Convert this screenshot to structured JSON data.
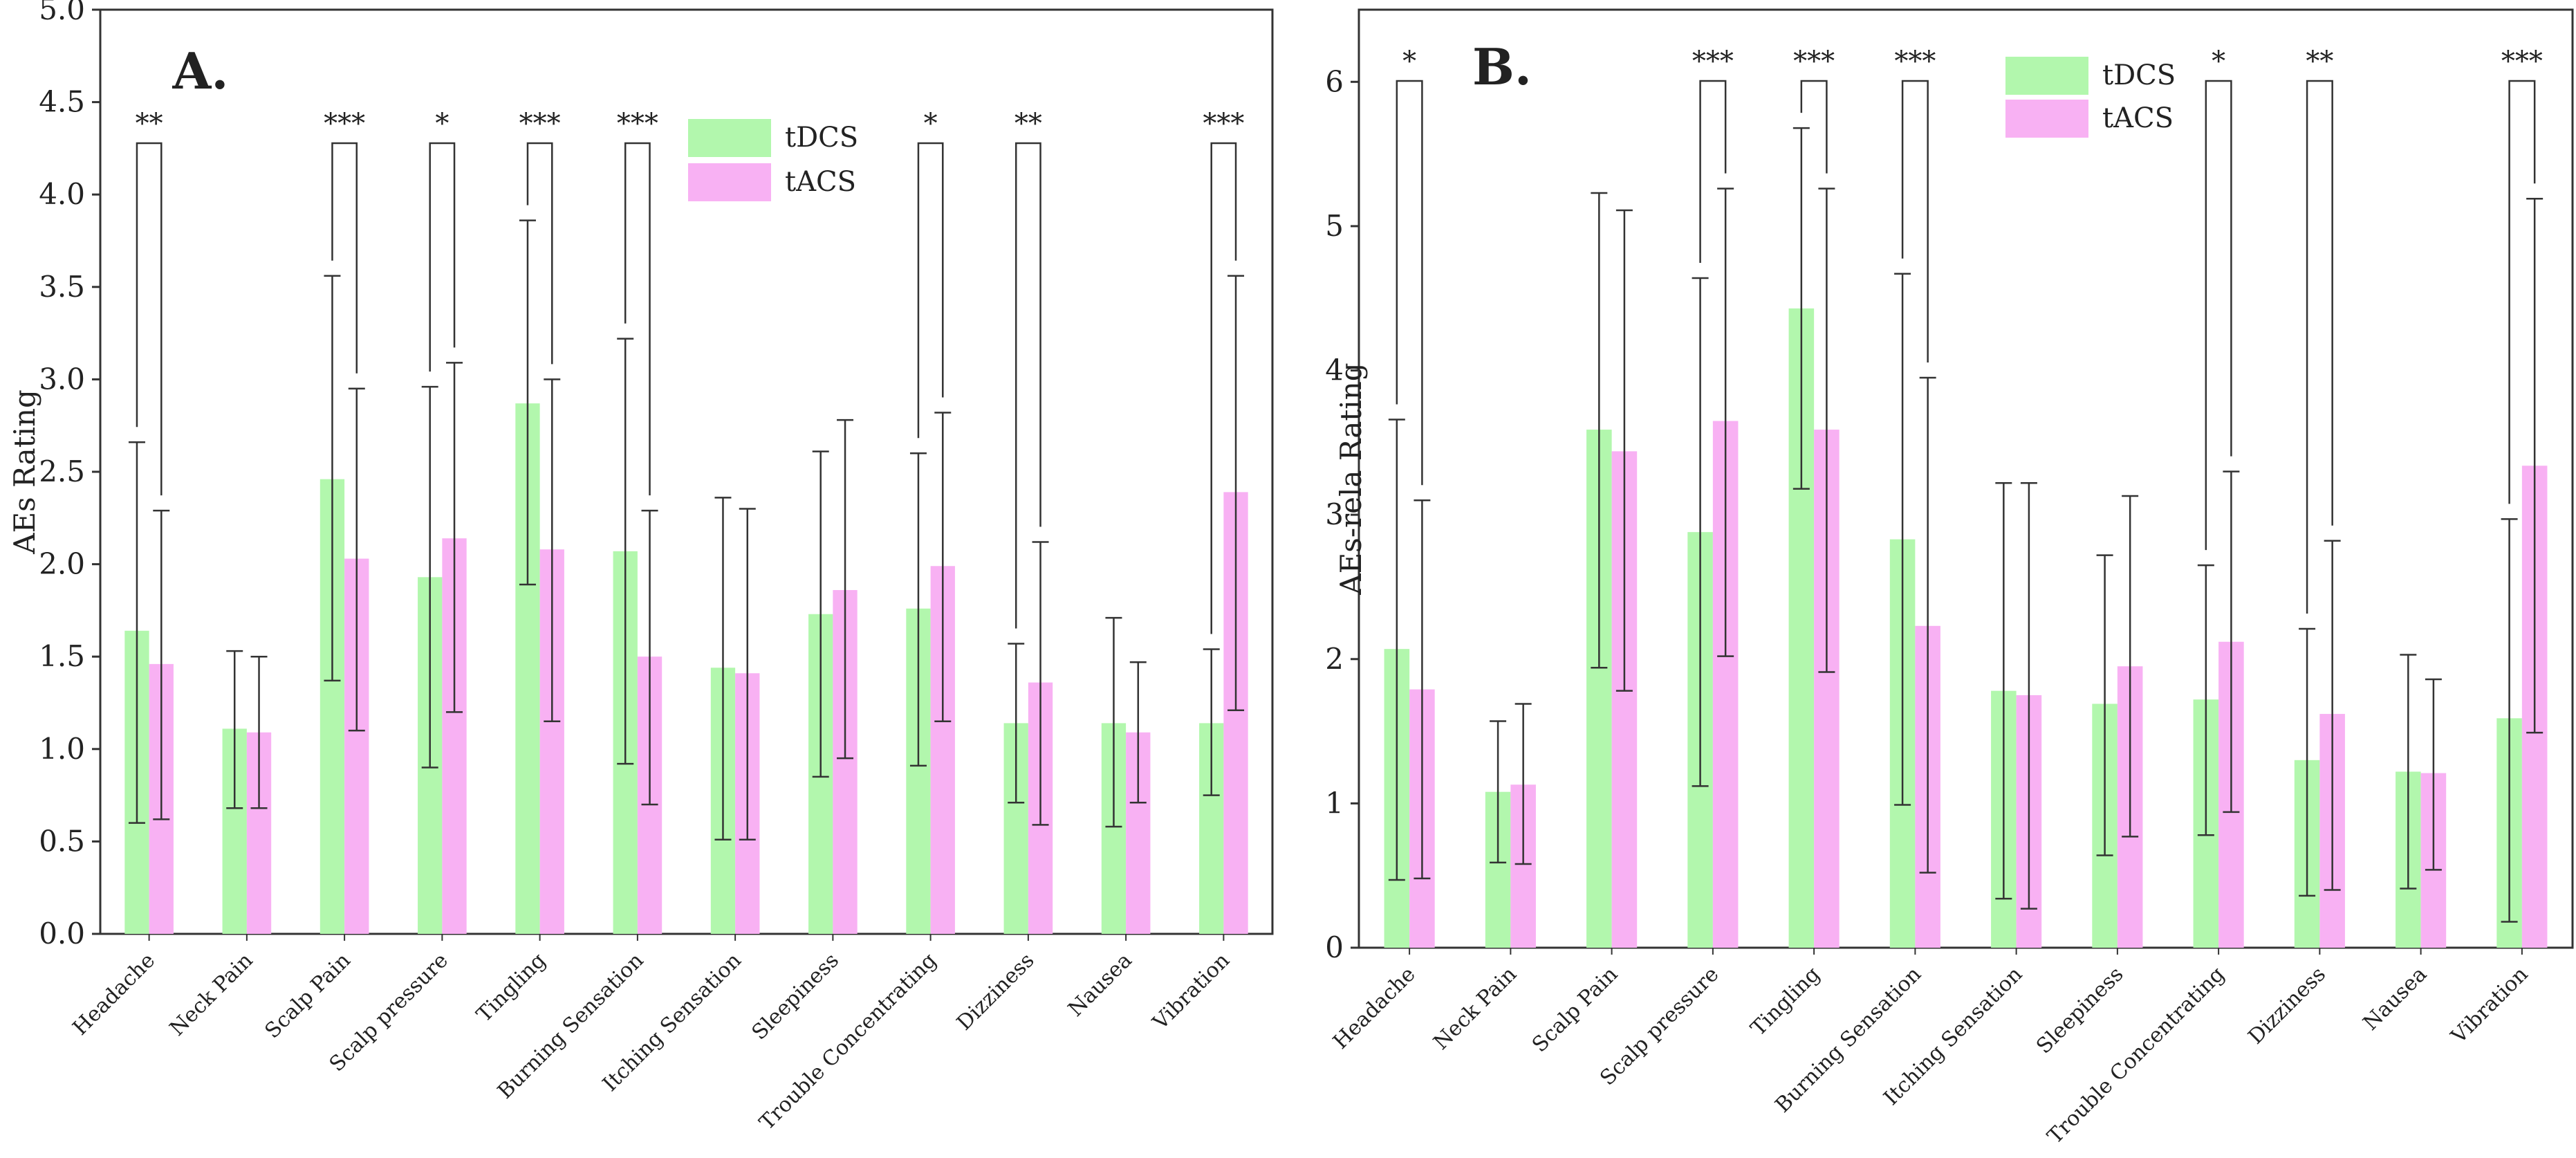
{
  "figure": {
    "colors": {
      "tdcs": "#b2f7ad",
      "tacs": "#f8b1f3",
      "axis": "#333333",
      "text": "#222222"
    }
  },
  "chart_data": [
    {
      "type": "bar",
      "panel_label": "A.",
      "title": "",
      "xlabel": "",
      "ylabel": "AEs Rating",
      "ylim": [
        0,
        5
      ],
      "yticks": [
        "0.0",
        "0.5",
        "1.0",
        "1.5",
        "2.0",
        "2.5",
        "3.0",
        "3.5",
        "4.0",
        "4.5",
        "5.0"
      ],
      "legend_position": "top-right",
      "categories": [
        "Headache",
        "Neck Pain",
        "Scalp Pain",
        "Scalp pressure",
        "Tingling",
        "Burning Sensation",
        "Itching Sensation",
        "Sleepiness",
        "Trouble Concentrating",
        "Dizziness",
        "Nausea",
        "Vibration"
      ],
      "series": [
        {
          "name": "tDCS",
          "values": [
            1.64,
            1.11,
            2.46,
            1.93,
            2.87,
            2.07,
            1.44,
            1.73,
            1.76,
            1.14,
            1.14,
            1.14
          ],
          "err_low": [
            0.6,
            0.68,
            1.37,
            0.9,
            1.89,
            0.92,
            0.51,
            0.85,
            0.91,
            0.71,
            0.58,
            0.75
          ],
          "err_high": [
            2.66,
            1.53,
            3.56,
            2.96,
            3.86,
            3.22,
            2.36,
            2.61,
            2.6,
            1.57,
            1.71,
            1.54
          ]
        },
        {
          "name": "tACS",
          "values": [
            1.46,
            1.09,
            2.03,
            2.14,
            2.08,
            1.5,
            1.41,
            1.86,
            1.99,
            1.36,
            1.09,
            2.39
          ],
          "err_low": [
            0.62,
            0.68,
            1.1,
            1.2,
            1.15,
            0.7,
            0.51,
            0.95,
            1.15,
            0.59,
            0.71,
            1.21
          ],
          "err_high": [
            2.29,
            1.5,
            2.95,
            3.09,
            3.0,
            2.29,
            2.3,
            2.78,
            2.82,
            2.12,
            1.47,
            3.56
          ]
        }
      ],
      "significance": [
        {
          "category": "Headache",
          "label": "**"
        },
        {
          "category": "Scalp Pain",
          "label": "***"
        },
        {
          "category": "Scalp pressure",
          "label": "*"
        },
        {
          "category": "Tingling",
          "label": "***"
        },
        {
          "category": "Burning Sensation",
          "label": "***"
        },
        {
          "category": "Trouble Concentrating",
          "label": "*"
        },
        {
          "category": "Dizziness",
          "label": "**"
        },
        {
          "category": "Vibration",
          "label": "***"
        }
      ]
    },
    {
      "type": "bar",
      "panel_label": "B.",
      "title": "",
      "xlabel": "",
      "ylabel": "AEs-rela Rating",
      "ylim": [
        0,
        6.5
      ],
      "yticks": [
        "0",
        "1",
        "2",
        "3",
        "4",
        "5",
        "6"
      ],
      "legend_position": "top-right",
      "categories": [
        "Headache",
        "Neck Pain",
        "Scalp Pain",
        "Scalp pressure",
        "Tingling",
        "Burning Sensation",
        "Itching Sensation",
        "Sleepiness",
        "Trouble Concentrating",
        "Dizziness",
        "Nausea",
        "Vibration"
      ],
      "series": [
        {
          "name": "tDCS",
          "values": [
            2.07,
            1.08,
            3.59,
            2.88,
            4.43,
            2.83,
            1.78,
            1.69,
            1.72,
            1.3,
            1.22,
            1.59
          ],
          "err_low": [
            0.47,
            0.59,
            1.94,
            1.12,
            3.18,
            0.99,
            0.34,
            0.64,
            0.78,
            0.36,
            0.41,
            0.18
          ],
          "err_high": [
            3.66,
            1.57,
            5.23,
            4.64,
            5.68,
            4.67,
            3.22,
            2.72,
            2.65,
            2.21,
            2.03,
            2.97
          ]
        },
        {
          "name": "tACS",
          "values": [
            1.79,
            1.13,
            3.44,
            3.65,
            3.59,
            2.23,
            1.75,
            1.95,
            2.12,
            1.62,
            1.21,
            3.34
          ],
          "err_low": [
            0.48,
            0.58,
            1.78,
            2.02,
            1.91,
            0.52,
            0.27,
            0.77,
            0.94,
            0.4,
            0.54,
            1.49
          ],
          "err_high": [
            3.1,
            1.69,
            5.11,
            5.26,
            5.26,
            3.95,
            3.22,
            3.13,
            3.3,
            2.82,
            1.86,
            5.19
          ]
        }
      ],
      "significance": [
        {
          "category": "Headache",
          "label": "*"
        },
        {
          "category": "Scalp pressure",
          "label": "***"
        },
        {
          "category": "Tingling",
          "label": "***"
        },
        {
          "category": "Burning Sensation",
          "label": "***"
        },
        {
          "category": "Trouble Concentrating",
          "label": "*"
        },
        {
          "category": "Dizziness",
          "label": "**"
        },
        {
          "category": "Vibration",
          "label": "***"
        }
      ]
    }
  ]
}
